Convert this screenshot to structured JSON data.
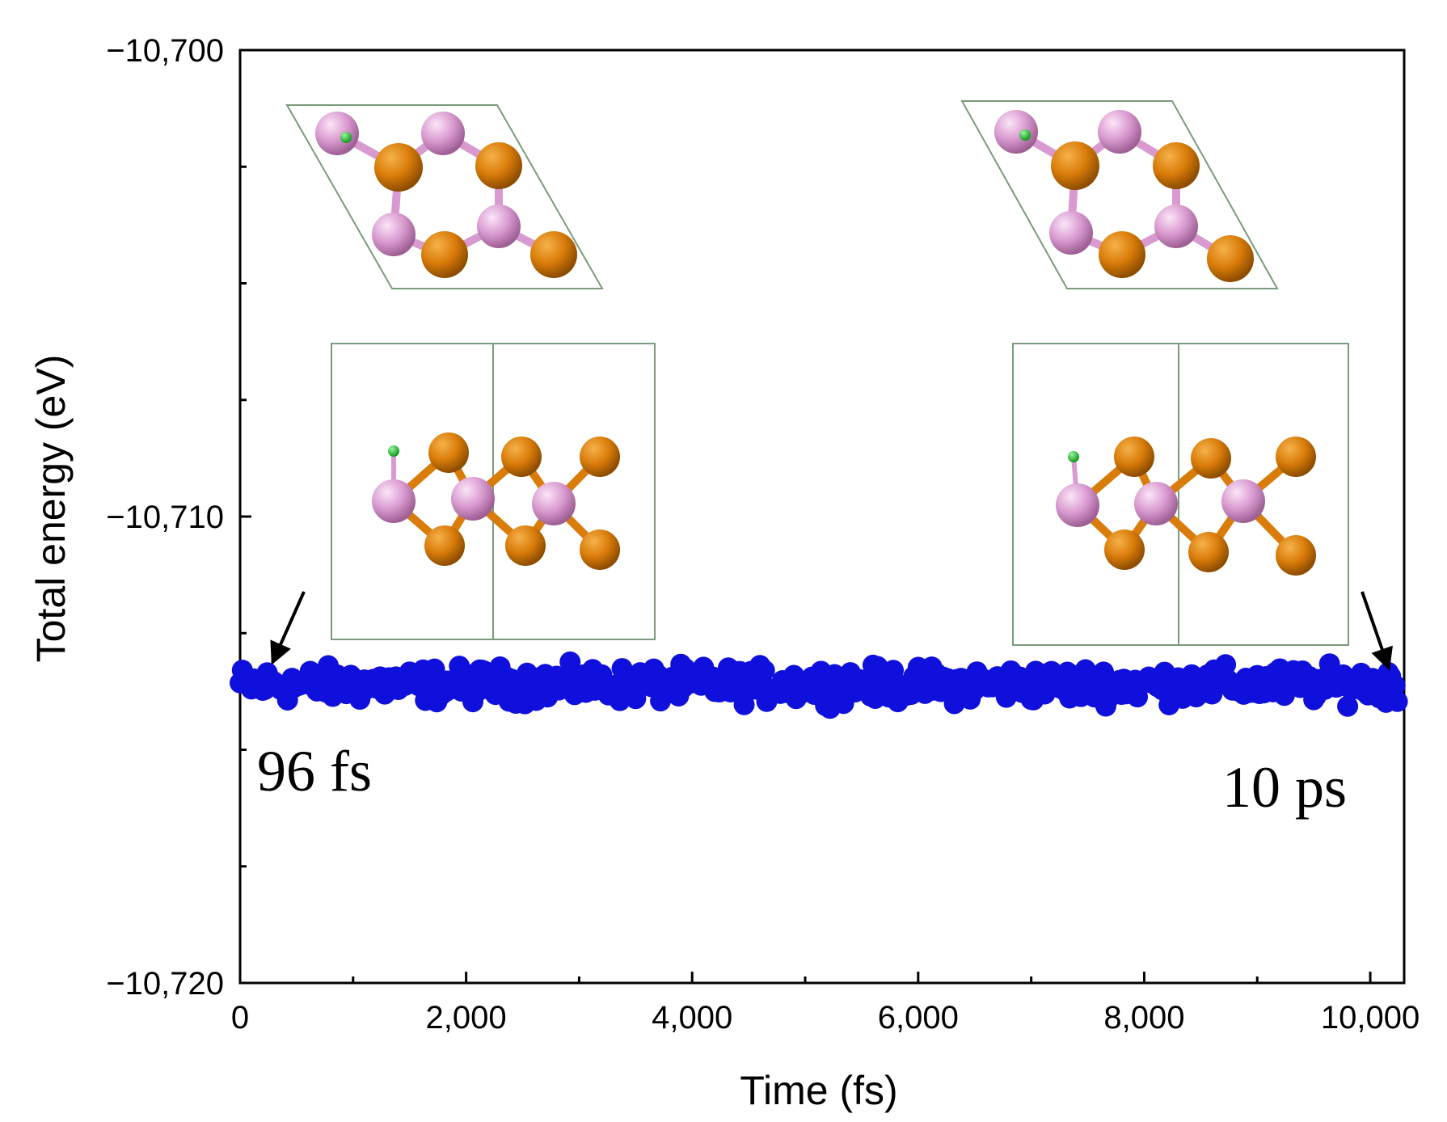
{
  "chart_data": {
    "type": "scatter",
    "title": "",
    "xlabel": "Time (fs)",
    "ylabel": "Total energy (eV)",
    "xlim": [
      0,
      10300
    ],
    "ylim": [
      -10720,
      -10700
    ],
    "x_ticks": [
      0,
      2000,
      4000,
      6000,
      8000,
      10000
    ],
    "x_tick_labels": [
      "0",
      "2,000",
      "4,000",
      "6,000",
      "8,000",
      "10,000"
    ],
    "y_ticks": [
      -10720,
      -10710,
      -10700
    ],
    "y_tick_labels": [
      "−10,720",
      "−10,710",
      "−10,700"
    ],
    "series": [
      {
        "name": "Total energy",
        "color": "#1010dd",
        "x_start": 0,
        "x_end": 10250,
        "x_step": 20,
        "mean": -10713.6,
        "fluctuation": 0.18
      }
    ],
    "annotations": [
      {
        "text": "96 fs",
        "target_x": 96,
        "target_y": -10713.4
      },
      {
        "text": "10 ps",
        "target_x": 10200,
        "target_y": -10713.4
      }
    ],
    "insets": [
      {
        "label": "top view at 96 fs"
      },
      {
        "label": "side view at 96 fs"
      },
      {
        "label": "top view at 10 ps"
      },
      {
        "label": "side view at 10 ps"
      }
    ],
    "atom_colors": {
      "pink": "#d99ad0",
      "orange": "#d97c0a",
      "green": "#18c424",
      "cell": "#7a9c7a"
    }
  }
}
